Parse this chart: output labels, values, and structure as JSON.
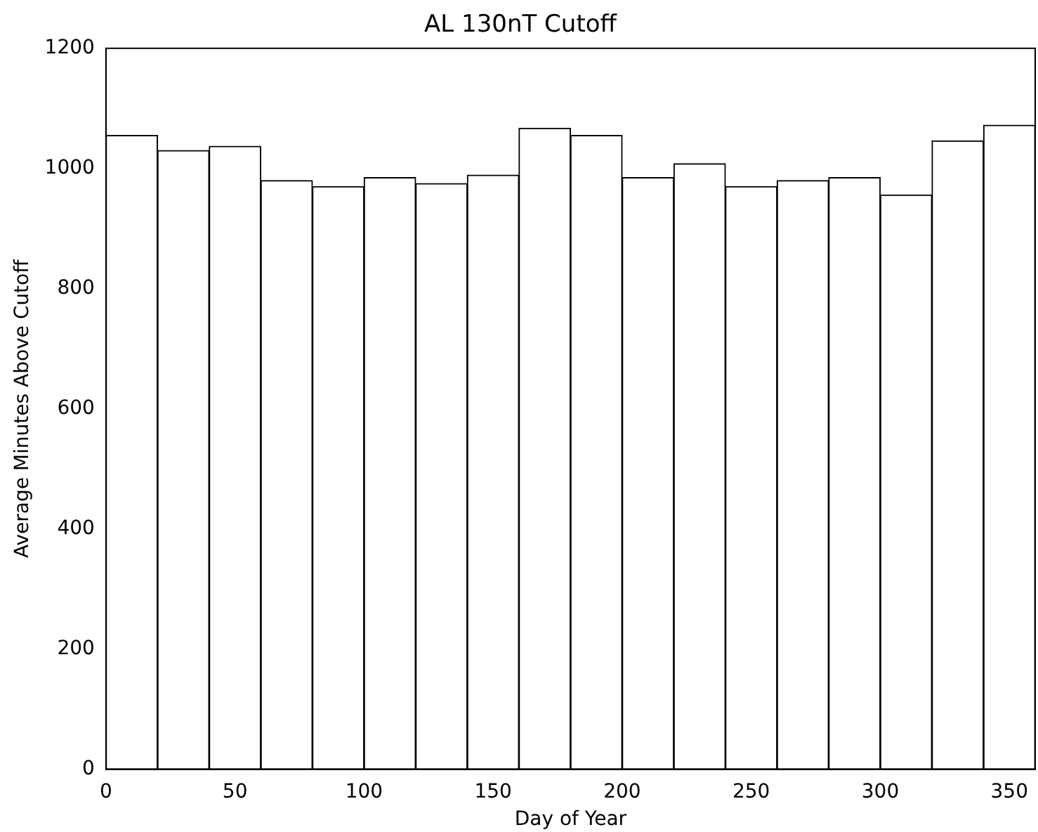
{
  "chart_data": {
    "type": "histogram",
    "title": "AL 130nT Cutoff",
    "xlabel": "Day of Year",
    "ylabel": "Average Minutes Above Cutoff",
    "bins": [
      0,
      20,
      40,
      60,
      80,
      100,
      120,
      140,
      160,
      180,
      200,
      220,
      240,
      260,
      280,
      300,
      320,
      340,
      360
    ],
    "values": [
      1055,
      1030,
      1037,
      980,
      970,
      985,
      975,
      989,
      1067,
      1055,
      985,
      1008,
      970,
      980,
      985,
      956,
      1046,
      1072
    ],
    "color": "#ffffff",
    "xlim": [
      0,
      360
    ],
    "xticks": [
      0,
      50,
      100,
      150,
      200,
      250,
      300,
      350
    ],
    "ylim": [
      0,
      1200
    ],
    "yticks": [
      0,
      200,
      400,
      600,
      800,
      1000,
      1200
    ],
    "grid": false,
    "legend": false
  }
}
